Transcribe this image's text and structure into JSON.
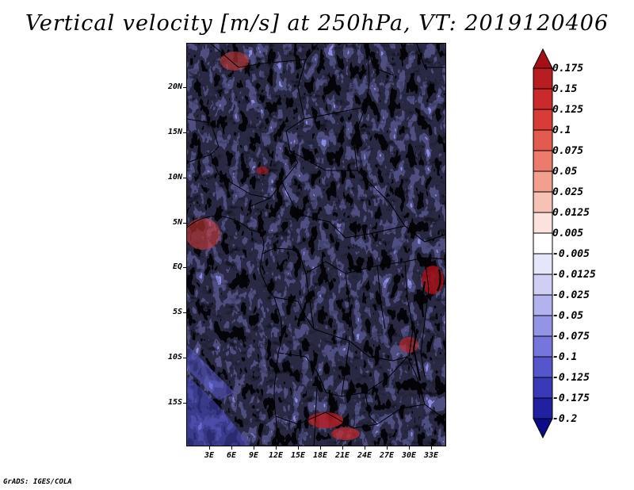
{
  "title": "Vertical velocity [m/s] at 250hPa, VT: 2019120406",
  "credit": "GrADS: IGES/COLA",
  "map": {
    "lat_labels": [
      "20N",
      "15N",
      "10N",
      "5N",
      "EQ",
      "5S",
      "10S",
      "15S"
    ],
    "lon_labels": [
      "3E",
      "6E",
      "9E",
      "12E",
      "15E",
      "18E",
      "21E",
      "24E",
      "27E",
      "30E",
      "33E"
    ],
    "lat_range": [
      -20,
      24.5
    ],
    "lon_range": [
      0,
      35
    ],
    "field": "vertical velocity",
    "units": "m/s",
    "level": "250hPa"
  },
  "colorbar": {
    "labels": [
      "0.175",
      "0.15",
      "0.125",
      "0.1",
      "0.075",
      "0.05",
      "0.025",
      "0.0125",
      "0.005",
      "-0.005",
      "-0.0125",
      "-0.025",
      "-0.05",
      "-0.075",
      "-0.1",
      "-0.125",
      "-0.175",
      "-0.2"
    ],
    "colors": [
      "#a50f15",
      "#b81d22",
      "#cb2a2c",
      "#d93b36",
      "#e35a4f",
      "#ec7b6c",
      "#f29f8f",
      "#f7c2b6",
      "#fbe2dc",
      "#ffffff",
      "#e6e6fa",
      "#cfcff5",
      "#b2b2ee",
      "#9494e6",
      "#7575dc",
      "#5656cc",
      "#3a3ab8",
      "#2020a0",
      "#0c0c88"
    ]
  }
}
